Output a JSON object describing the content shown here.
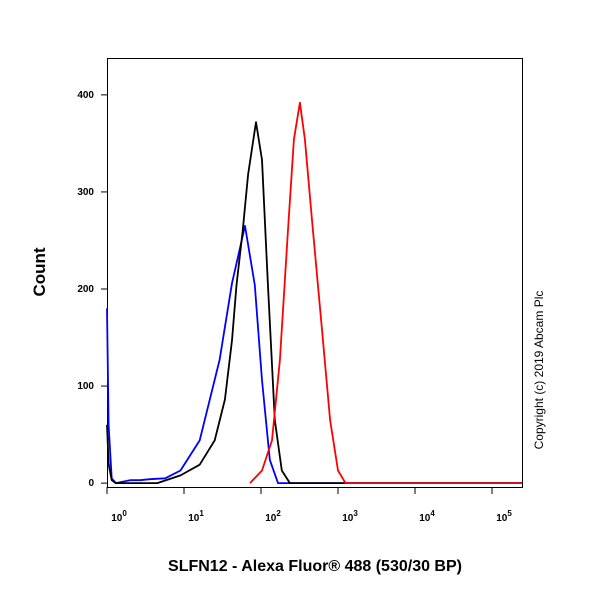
{
  "chart_data": {
    "type": "line",
    "x_label": "SLFN12 - Alexa Fluor® 488 (530/30 BP)",
    "y_label": "Count",
    "annotation": "Copyright (c) 2019 Abcam Plc",
    "xscale": "log",
    "xlim": [
      1,
      245000
    ],
    "ylim": [
      -4,
      438
    ],
    "xticks": [
      {
        "value": 1,
        "label": "10",
        "exponent": "0"
      },
      {
        "value": 10,
        "label": "10",
        "exponent": "1"
      },
      {
        "value": 100,
        "label": "10",
        "exponent": "2"
      },
      {
        "value": 1000,
        "label": "10",
        "exponent": "3"
      },
      {
        "value": 10000,
        "label": "10",
        "exponent": "4"
      },
      {
        "value": 100000,
        "label": "10",
        "exponent": "5"
      }
    ],
    "yticks": [
      0,
      100,
      200,
      300,
      400
    ],
    "series": [
      {
        "color": "#0000ff",
        "x": [
          1,
          1.05,
          1.15,
          1.3,
          2,
          2.7,
          3.6,
          5.7,
          9,
          16,
          29,
          42,
          62,
          83,
          103,
          130,
          166,
          245000
        ],
        "values": [
          180,
          60,
          5,
          0,
          3,
          3,
          4,
          5,
          13,
          44,
          127,
          206,
          265,
          204,
          106,
          24,
          0,
          0
        ]
      },
      {
        "color": "#000000",
        "x": [
          1,
          1.05,
          1.15,
          1.3,
          4.5,
          9,
          16,
          25,
          34,
          42,
          48,
          58,
          68,
          86,
          103,
          122,
          151,
          186,
          237,
          245000
        ],
        "values": [
          60,
          20,
          3,
          0,
          0,
          8,
          19,
          44,
          86,
          147,
          204,
          261,
          318,
          372,
          333,
          209,
          65,
          13,
          0,
          0
        ]
      },
      {
        "color": "#ff0000",
        "x": [
          72,
          103,
          139,
          176,
          224,
          267,
          320,
          372,
          459,
          620,
          790,
          1000,
          1250,
          245000
        ],
        "values": [
          0,
          13,
          44,
          127,
          261,
          354,
          392,
          354,
          271,
          158,
          65,
          13,
          0,
          0
        ]
      }
    ]
  }
}
